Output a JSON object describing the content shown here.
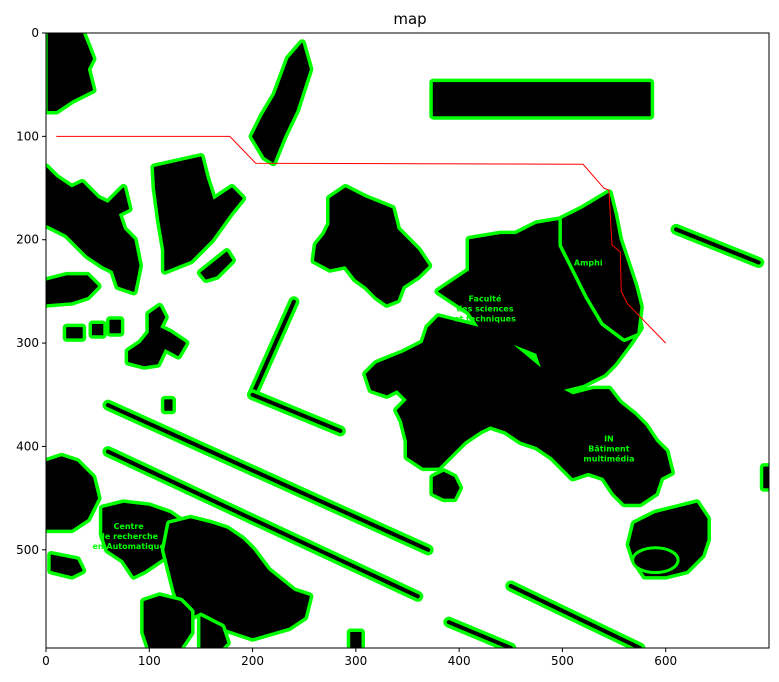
{
  "chart_data": {
    "type": "map",
    "title": "map",
    "xlim": [
      0,
      700
    ],
    "ylim": [
      0,
      595
    ],
    "x_ticks": [
      0,
      100,
      200,
      300,
      400,
      500,
      600
    ],
    "y_ticks": [
      0,
      100,
      200,
      300,
      400,
      500
    ],
    "colors": {
      "obstacle": "#000000",
      "inflation": "#00ff00",
      "path": "#ff0000",
      "free": "#ffffff"
    },
    "path": [
      [
        10,
        100
      ],
      [
        178,
        100
      ],
      [
        203,
        126
      ],
      [
        520,
        127
      ],
      [
        540,
        150
      ],
      [
        545,
        152
      ],
      [
        548,
        205
      ],
      [
        556,
        212
      ],
      [
        557,
        250
      ],
      [
        563,
        262
      ],
      [
        600,
        300
      ]
    ],
    "polygons": [
      [
        [
          2,
          0
        ],
        [
          35,
          0
        ],
        [
          40,
          12
        ],
        [
          45,
          25
        ],
        [
          40,
          35
        ],
        [
          45,
          55
        ],
        [
          25,
          65
        ],
        [
          10,
          75
        ],
        [
          2,
          75
        ]
      ],
      [
        [
          235,
          25
        ],
        [
          248,
          10
        ],
        [
          255,
          35
        ],
        [
          242,
          75
        ],
        [
          230,
          100
        ],
        [
          220,
          125
        ],
        [
          212,
          120
        ],
        [
          200,
          100
        ],
        [
          210,
          80
        ],
        [
          222,
          60
        ]
      ],
      [
        [
          375,
          48
        ],
        [
          585,
          48
        ],
        [
          585,
          80
        ],
        [
          375,
          80
        ]
      ],
      [
        [
          0,
          130
        ],
        [
          10,
          140
        ],
        [
          25,
          150
        ],
        [
          35,
          145
        ],
        [
          50,
          160
        ],
        [
          60,
          165
        ],
        [
          75,
          150
        ],
        [
          80,
          170
        ],
        [
          70,
          175
        ],
        [
          75,
          190
        ],
        [
          85,
          200
        ],
        [
          90,
          225
        ],
        [
          85,
          250
        ],
        [
          70,
          245
        ],
        [
          65,
          230
        ],
        [
          55,
          225
        ],
        [
          40,
          215
        ],
        [
          25,
          200
        ],
        [
          20,
          195
        ],
        [
          0,
          185
        ]
      ],
      [
        [
          105,
          130
        ],
        [
          150,
          120
        ],
        [
          155,
          140
        ],
        [
          162,
          162
        ],
        [
          180,
          150
        ],
        [
          190,
          160
        ],
        [
          178,
          175
        ],
        [
          160,
          200
        ],
        [
          140,
          220
        ],
        [
          115,
          230
        ],
        [
          115,
          210
        ],
        [
          110,
          180
        ],
        [
          106,
          150
        ]
      ],
      [
        [
          165,
          220
        ],
        [
          175,
          212
        ],
        [
          180,
          220
        ],
        [
          165,
          235
        ],
        [
          155,
          238
        ],
        [
          150,
          232
        ]
      ],
      [
        [
          0,
          240
        ],
        [
          20,
          235
        ],
        [
          40,
          235
        ],
        [
          50,
          245
        ],
        [
          40,
          255
        ],
        [
          25,
          260
        ],
        [
          0,
          262
        ]
      ],
      [
        [
          20,
          285
        ],
        [
          35,
          285
        ],
        [
          35,
          295
        ],
        [
          20,
          295
        ]
      ],
      [
        [
          45,
          282
        ],
        [
          55,
          282
        ],
        [
          55,
          292
        ],
        [
          45,
          292
        ]
      ],
      [
        [
          62,
          278
        ],
        [
          72,
          278
        ],
        [
          72,
          290
        ],
        [
          62,
          290
        ]
      ],
      [
        [
          100,
          272
        ],
        [
          110,
          265
        ],
        [
          115,
          275
        ],
        [
          110,
          285
        ],
        [
          120,
          290
        ],
        [
          135,
          300
        ],
        [
          128,
          312
        ],
        [
          115,
          305
        ],
        [
          108,
          320
        ],
        [
          95,
          322
        ],
        [
          80,
          318
        ],
        [
          80,
          308
        ],
        [
          92,
          300
        ],
        [
          100,
          290
        ]
      ],
      [
        [
          115,
          355
        ],
        [
          122,
          355
        ],
        [
          122,
          365
        ],
        [
          115,
          365
        ]
      ],
      [
        [
          275,
          160
        ],
        [
          290,
          150
        ],
        [
          300,
          155
        ],
        [
          310,
          160
        ],
        [
          335,
          170
        ],
        [
          340,
          190
        ],
        [
          350,
          200
        ],
        [
          360,
          210
        ],
        [
          370,
          225
        ],
        [
          360,
          235
        ],
        [
          345,
          245
        ],
        [
          340,
          258
        ],
        [
          330,
          262
        ],
        [
          320,
          255
        ],
        [
          310,
          245
        ],
        [
          300,
          238
        ],
        [
          290,
          225
        ],
        [
          275,
          228
        ],
        [
          260,
          220
        ],
        [
          262,
          205
        ],
        [
          270,
          195
        ],
        [
          275,
          185
        ]
      ],
      [
        [
          410,
          200
        ],
        [
          440,
          195
        ],
        [
          455,
          195
        ],
        [
          475,
          185
        ],
        [
          505,
          180
        ],
        [
          520,
          175
        ],
        [
          550,
          215
        ],
        [
          565,
          250
        ],
        [
          575,
          285
        ],
        [
          565,
          300
        ],
        [
          550,
          320
        ],
        [
          540,
          330
        ],
        [
          520,
          340
        ],
        [
          500,
          345
        ],
        [
          485,
          340
        ],
        [
          480,
          325
        ],
        [
          475,
          310
        ],
        [
          450,
          300
        ],
        [
          420,
          285
        ],
        [
          380,
          275
        ],
        [
          370,
          285
        ],
        [
          365,
          300
        ],
        [
          345,
          310
        ],
        [
          320,
          320
        ],
        [
          310,
          330
        ],
        [
          315,
          345
        ],
        [
          330,
          350
        ],
        [
          340,
          345
        ],
        [
          350,
          355
        ],
        [
          340,
          365
        ],
        [
          345,
          375
        ],
        [
          350,
          395
        ],
        [
          350,
          410
        ],
        [
          365,
          420
        ],
        [
          380,
          420
        ],
        [
          395,
          405
        ],
        [
          405,
          395
        ],
        [
          420,
          385
        ],
        [
          430,
          380
        ],
        [
          445,
          385
        ],
        [
          460,
          395
        ],
        [
          475,
          400
        ],
        [
          490,
          410
        ],
        [
          500,
          420
        ],
        [
          510,
          430
        ],
        [
          525,
          425
        ],
        [
          540,
          430
        ],
        [
          550,
          445
        ],
        [
          560,
          455
        ],
        [
          575,
          455
        ],
        [
          590,
          445
        ],
        [
          595,
          430
        ],
        [
          605,
          425
        ],
        [
          600,
          405
        ],
        [
          590,
          395
        ],
        [
          580,
          380
        ],
        [
          570,
          370
        ],
        [
          555,
          358
        ],
        [
          545,
          345
        ],
        [
          530,
          345
        ],
        [
          510,
          350
        ],
        [
          500,
          345
        ],
        [
          485,
          340
        ],
        [
          480,
          325
        ],
        [
          450,
          300
        ],
        [
          420,
          285
        ],
        [
          410,
          270
        ],
        [
          395,
          260
        ],
        [
          380,
          250
        ],
        [
          395,
          240
        ],
        [
          410,
          230
        ]
      ],
      [
        [
          500,
          180
        ],
        [
          520,
          170
        ],
        [
          545,
          155
        ],
        [
          550,
          175
        ],
        [
          555,
          200
        ],
        [
          560,
          215
        ],
        [
          565,
          230
        ],
        [
          570,
          245
        ],
        [
          575,
          265
        ],
        [
          572,
          290
        ],
        [
          560,
          295
        ],
        [
          540,
          280
        ],
        [
          525,
          255
        ],
        [
          510,
          225
        ],
        [
          500,
          205
        ]
      ],
      [
        [
          375,
          430
        ],
        [
          385,
          425
        ],
        [
          395,
          430
        ],
        [
          400,
          440
        ],
        [
          395,
          450
        ],
        [
          385,
          450
        ],
        [
          375,
          445
        ]
      ],
      [
        [
          570,
          475
        ],
        [
          590,
          465
        ],
        [
          610,
          460
        ],
        [
          630,
          455
        ],
        [
          640,
          470
        ],
        [
          640,
          490
        ],
        [
          635,
          505
        ],
        [
          620,
          520
        ],
        [
          600,
          525
        ],
        [
          580,
          525
        ],
        [
          570,
          510
        ],
        [
          565,
          495
        ]
      ],
      [
        [
          695,
          420
        ],
        [
          700,
          420
        ],
        [
          700,
          440
        ],
        [
          695,
          440
        ]
      ],
      [
        [
          0,
          415
        ],
        [
          15,
          410
        ],
        [
          30,
          415
        ],
        [
          45,
          430
        ],
        [
          50,
          450
        ],
        [
          40,
          470
        ],
        [
          25,
          480
        ],
        [
          10,
          480
        ],
        [
          0,
          480
        ]
      ],
      [
        [
          5,
          505
        ],
        [
          30,
          510
        ],
        [
          35,
          520
        ],
        [
          25,
          525
        ],
        [
          5,
          520
        ]
      ],
      [
        [
          55,
          460
        ],
        [
          75,
          455
        ],
        [
          100,
          458
        ],
        [
          120,
          465
        ],
        [
          130,
          472
        ],
        [
          135,
          485
        ],
        [
          125,
          500
        ],
        [
          110,
          510
        ],
        [
          95,
          520
        ],
        [
          85,
          525
        ],
        [
          75,
          510
        ],
        [
          60,
          500
        ],
        [
          55,
          485
        ]
      ],
      [
        [
          120,
          475
        ],
        [
          140,
          470
        ],
        [
          160,
          475
        ],
        [
          175,
          480
        ],
        [
          190,
          490
        ],
        [
          200,
          500
        ],
        [
          215,
          520
        ],
        [
          240,
          540
        ],
        [
          255,
          545
        ],
        [
          250,
          565
        ],
        [
          235,
          575
        ],
        [
          200,
          585
        ],
        [
          185,
          580
        ],
        [
          170,
          575
        ],
        [
          160,
          565
        ],
        [
          150,
          560
        ],
        [
          140,
          565
        ],
        [
          130,
          555
        ],
        [
          125,
          540
        ],
        [
          120,
          520
        ],
        [
          115,
          500
        ]
      ],
      [
        [
          95,
          550
        ],
        [
          110,
          545
        ],
        [
          130,
          550
        ],
        [
          140,
          560
        ],
        [
          140,
          580
        ],
        [
          130,
          595
        ],
        [
          100,
          595
        ],
        [
          95,
          580
        ]
      ],
      [
        [
          150,
          565
        ],
        [
          170,
          575
        ],
        [
          175,
          590
        ],
        [
          170,
          595
        ],
        [
          150,
          595
        ]
      ],
      [
        [
          295,
          580
        ],
        [
          305,
          580
        ],
        [
          305,
          595
        ],
        [
          295,
          595
        ]
      ]
    ],
    "segments": [
      [
        [
          240,
          260
        ],
        [
          200,
          350
        ]
      ],
      [
        [
          200,
          350
        ],
        [
          285,
          385
        ]
      ],
      [
        [
          60,
          360
        ],
        [
          370,
          500
        ]
      ],
      [
        [
          60,
          405
        ],
        [
          360,
          545
        ]
      ],
      [
        [
          450,
          535
        ],
        [
          575,
          595
        ]
      ],
      [
        [
          390,
          570
        ],
        [
          450,
          595
        ]
      ],
      [
        [
          610,
          190
        ],
        [
          690,
          222
        ]
      ]
    ],
    "ellipse": {
      "cx": 590,
      "cy": 510,
      "rx": 22,
      "ry": 12
    },
    "labels": [
      {
        "lines": [
          "Faculté",
          "des sciences",
          "et techniques"
        ],
        "at": [
          425,
          260
        ]
      },
      {
        "lines": [
          "IN",
          "Bâtiment",
          "multimédia"
        ],
        "at": [
          545,
          395
        ]
      },
      {
        "lines": [
          "Centre",
          "de recherche",
          "en Automatique"
        ],
        "at": [
          80,
          480
        ]
      },
      {
        "lines": [
          "Amphi"
        ],
        "at": [
          525,
          225
        ]
      }
    ]
  }
}
